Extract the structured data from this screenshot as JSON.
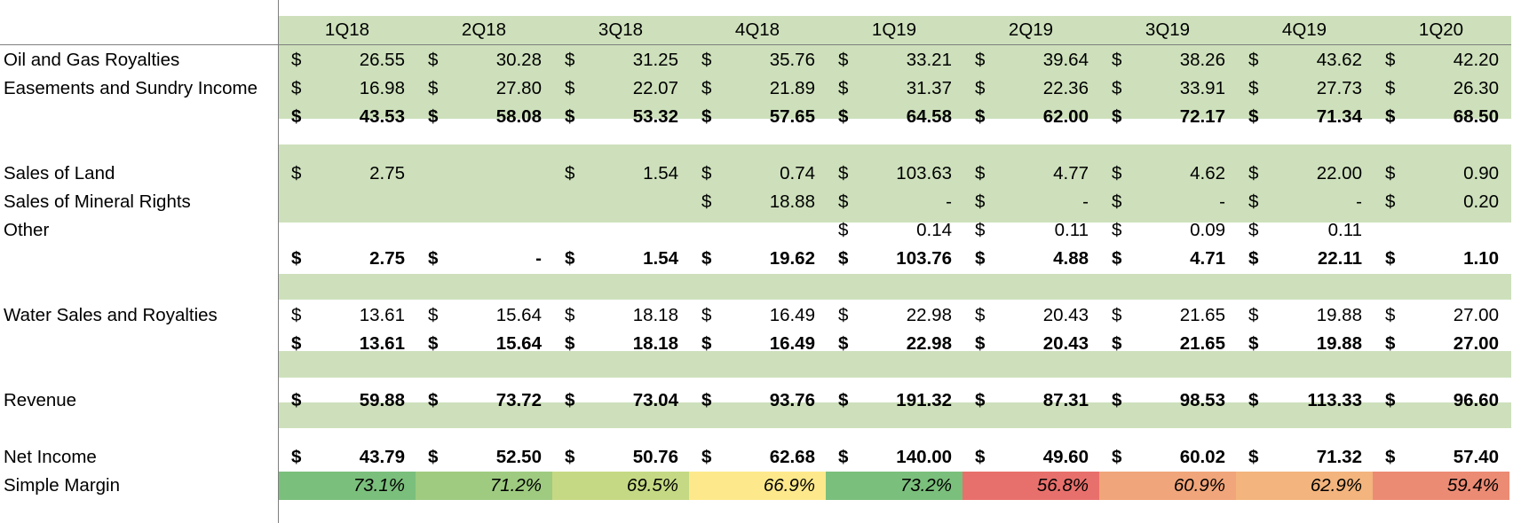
{
  "periods": [
    "1Q18",
    "2Q18",
    "3Q18",
    "4Q18",
    "1Q19",
    "2Q19",
    "3Q19",
    "4Q19",
    "1Q20"
  ],
  "rows": [
    {
      "id": "oil-gas-royalties",
      "label": "Oil and Gas Royalties",
      "bold": false,
      "values": [
        "$|26.55",
        "$|30.28",
        "$|31.25",
        "$|35.76",
        "$|33.21",
        "$|39.64",
        "$|38.26",
        "$|43.62",
        "$|42.20"
      ]
    },
    {
      "id": "easements-sundry",
      "label": "Easements and Sundry Income",
      "bold": false,
      "values": [
        "$|16.98",
        "$|27.80",
        "$|22.07",
        "$|21.89",
        "$|31.37",
        "$|22.36",
        "$|33.91",
        "$|27.73",
        "$|26.30"
      ]
    },
    {
      "id": "subtotal-royalties",
      "label": "",
      "bold": true,
      "values": [
        "$|43.53",
        "$|58.08",
        "$|53.32",
        "$|57.65",
        "$|64.58",
        "$|62.00",
        "$|72.17",
        "$|71.34",
        "$|68.50"
      ]
    },
    {
      "id": "sales-of-land",
      "label": "Sales of Land",
      "bold": false,
      "values": [
        "$|2.75",
        "",
        "$|1.54",
        "$|0.74",
        "$|103.63",
        "$|4.77",
        "$|4.62",
        "$|22.00",
        "$|0.90"
      ]
    },
    {
      "id": "sales-mineral-rights",
      "label": "Sales of Mineral Rights",
      "bold": false,
      "values": [
        "",
        "",
        "",
        "$|18.88",
        "$|-",
        "$|-",
        "$|-",
        "$|-",
        "$|0.20"
      ]
    },
    {
      "id": "other",
      "label": "Other",
      "bold": false,
      "values": [
        "",
        "",
        "",
        "",
        "$|0.14",
        "$|0.11",
        "$|0.09",
        "$|0.11",
        ""
      ]
    },
    {
      "id": "subtotal-land",
      "label": "",
      "bold": true,
      "values": [
        "$|2.75",
        "$|-",
        "$|1.54",
        "$|19.62",
        "$|103.76",
        "$|4.88",
        "$|4.71",
        "$|22.11",
        "$|1.10"
      ]
    },
    {
      "id": "water-sales",
      "label": "Water Sales and Royalties",
      "bold": false,
      "values": [
        "$|13.61",
        "$|15.64",
        "$|18.18",
        "$|16.49",
        "$|22.98",
        "$|20.43",
        "$|21.65",
        "$|19.88",
        "$|27.00"
      ]
    },
    {
      "id": "subtotal-water",
      "label": "",
      "bold": true,
      "values": [
        "$|13.61",
        "$|15.64",
        "$|18.18",
        "$|16.49",
        "$|22.98",
        "$|20.43",
        "$|21.65",
        "$|19.88",
        "$|27.00"
      ]
    },
    {
      "id": "revenue",
      "label": "Revenue",
      "bold": true,
      "labelBold": false,
      "values": [
        "$|59.88",
        "$|73.72",
        "$|73.04",
        "$|93.76",
        "$|191.32",
        "$|87.31",
        "$|98.53",
        "$|113.33",
        "$|96.60"
      ]
    },
    {
      "id": "net-income",
      "label": "Net Income",
      "bold": true,
      "labelBold": false,
      "values": [
        "$|43.79",
        "$|52.50",
        "$|50.76",
        "$|62.68",
        "$|140.00",
        "$|49.60",
        "$|60.02",
        "$|71.32",
        "$|57.40"
      ]
    }
  ],
  "margin": {
    "label": "Simple Margin",
    "values": [
      "73.1%",
      "71.2%",
      "69.5%",
      "66.9%",
      "73.2%",
      "56.8%",
      "60.9%",
      "62.9%",
      "59.4%"
    ],
    "colors": [
      "#7bbf7c",
      "#9ecb80",
      "#c5d984",
      "#fde98b",
      "#7bbf7c",
      "#e8706c",
      "#f1a57a",
      "#f3b47d",
      "#ec8b74"
    ]
  }
}
